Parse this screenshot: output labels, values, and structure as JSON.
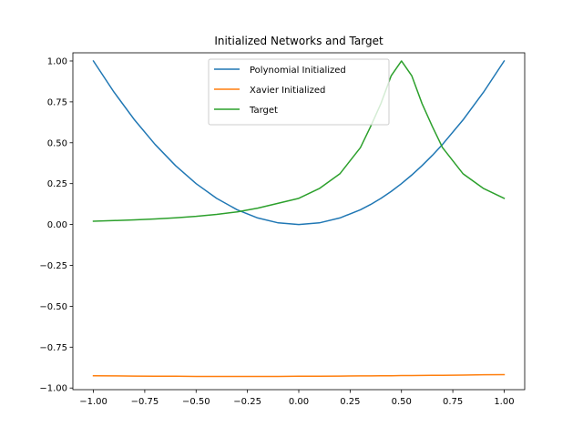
{
  "chart_data": {
    "type": "line",
    "title": "Initialized Networks and Target",
    "xlabel": "",
    "ylabel": "",
    "xlim": [
      -1.1,
      1.1
    ],
    "ylim": [
      -1.01,
      1.05
    ],
    "xticks": [
      -1.0,
      -0.75,
      -0.5,
      -0.25,
      0.0,
      0.25,
      0.5,
      0.75,
      1.0
    ],
    "xtick_labels": [
      "−1.00",
      "−0.75",
      "−0.50",
      "−0.25",
      "0.00",
      "0.25",
      "0.50",
      "0.75",
      "1.00"
    ],
    "yticks": [
      -1.0,
      -0.75,
      -0.5,
      -0.25,
      0.0,
      0.25,
      0.5,
      0.75,
      1.0
    ],
    "ytick_labels": [
      "−1.00",
      "−0.75",
      "−0.50",
      "−0.25",
      "0.00",
      "0.25",
      "0.50",
      "0.75",
      "1.00"
    ],
    "grid": false,
    "legend": "top-center",
    "x": [
      -1.0,
      -0.9,
      -0.8,
      -0.7,
      -0.6,
      -0.5,
      -0.4,
      -0.3,
      -0.2,
      -0.1,
      0.0,
      0.1,
      0.2,
      0.3,
      0.35,
      0.4,
      0.45,
      0.5,
      0.55,
      0.6,
      0.65,
      0.7,
      0.8,
      0.9,
      1.0
    ],
    "series": [
      {
        "name": "Polynomial Initialized",
        "color": "#1f77b4",
        "values": [
          1.0,
          0.81,
          0.64,
          0.49,
          0.36,
          0.25,
          0.16,
          0.09,
          0.04,
          0.01,
          0.0,
          0.01,
          0.04,
          0.09,
          0.1225,
          0.16,
          0.2025,
          0.25,
          0.3025,
          0.36,
          0.4225,
          0.49,
          0.64,
          0.81,
          1.0
        ]
      },
      {
        "name": "Xavier Initialized",
        "color": "#ff7f0e",
        "values": [
          -0.925,
          -0.926,
          -0.927,
          -0.928,
          -0.928,
          -0.929,
          -0.929,
          -0.929,
          -0.929,
          -0.929,
          -0.928,
          -0.928,
          -0.927,
          -0.926,
          -0.926,
          -0.925,
          -0.925,
          -0.924,
          -0.924,
          -0.923,
          -0.922,
          -0.922,
          -0.921,
          -0.919,
          -0.918
        ]
      },
      {
        "name": "Target",
        "color": "#2ca02c",
        "values": [
          0.02,
          0.024,
          0.028,
          0.034,
          0.041,
          0.05,
          0.062,
          0.077,
          0.1,
          0.13,
          0.16,
          0.22,
          0.31,
          0.47,
          0.6,
          0.74,
          0.91,
          1.0,
          0.91,
          0.74,
          0.6,
          0.47,
          0.31,
          0.22,
          0.16
        ]
      }
    ]
  }
}
